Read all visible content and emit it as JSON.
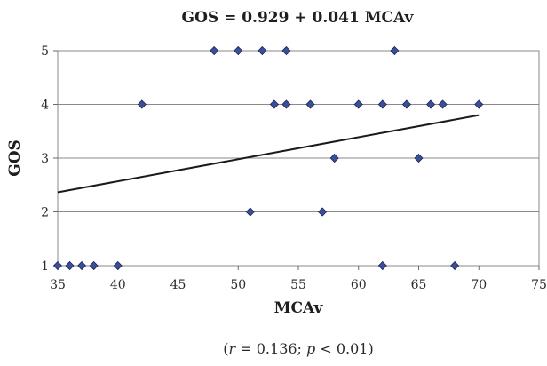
{
  "chart_data": {
    "type": "scatter",
    "title": "GOS = 0.929 + 0.041 MCAv",
    "xlabel": "MCAv",
    "ylabel": "GOS",
    "xlim": [
      35,
      75
    ],
    "ylim": [
      1,
      5
    ],
    "x_ticks": [
      "35",
      "40",
      "45",
      "50",
      "55",
      "60",
      "65",
      "70",
      "75"
    ],
    "y_ticks": [
      "1",
      "2",
      "3",
      "4",
      "5"
    ],
    "grid": "horizontal",
    "legend": "none",
    "marker_color": "#3a4f9a",
    "line_color": "#1a1a1a",
    "trendline": {
      "intercept": 0.929,
      "slope": 0.041,
      "x_range": [
        35,
        70
      ]
    },
    "points": [
      {
        "x": 35,
        "y": 1
      },
      {
        "x": 36,
        "y": 1
      },
      {
        "x": 37,
        "y": 1
      },
      {
        "x": 38,
        "y": 1
      },
      {
        "x": 40,
        "y": 1
      },
      {
        "x": 62,
        "y": 1
      },
      {
        "x": 68,
        "y": 1
      },
      {
        "x": 51,
        "y": 2
      },
      {
        "x": 57,
        "y": 2
      },
      {
        "x": 58,
        "y": 3
      },
      {
        "x": 65,
        "y": 3
      },
      {
        "x": 42,
        "y": 4
      },
      {
        "x": 53,
        "y": 4
      },
      {
        "x": 54,
        "y": 4
      },
      {
        "x": 56,
        "y": 4
      },
      {
        "x": 60,
        "y": 4
      },
      {
        "x": 62,
        "y": 4
      },
      {
        "x": 64,
        "y": 4
      },
      {
        "x": 66,
        "y": 4
      },
      {
        "x": 67,
        "y": 4
      },
      {
        "x": 70,
        "y": 4
      },
      {
        "x": 48,
        "y": 5
      },
      {
        "x": 50,
        "y": 5
      },
      {
        "x": 52,
        "y": 5
      },
      {
        "x": 54,
        "y": 5
      },
      {
        "x": 63,
        "y": 5
      }
    ]
  },
  "caption": {
    "open": "(",
    "r_symbol": "r",
    "r_value": " = 0.136; ",
    "p_symbol": "p",
    "p_value": " < 0.01)"
  }
}
